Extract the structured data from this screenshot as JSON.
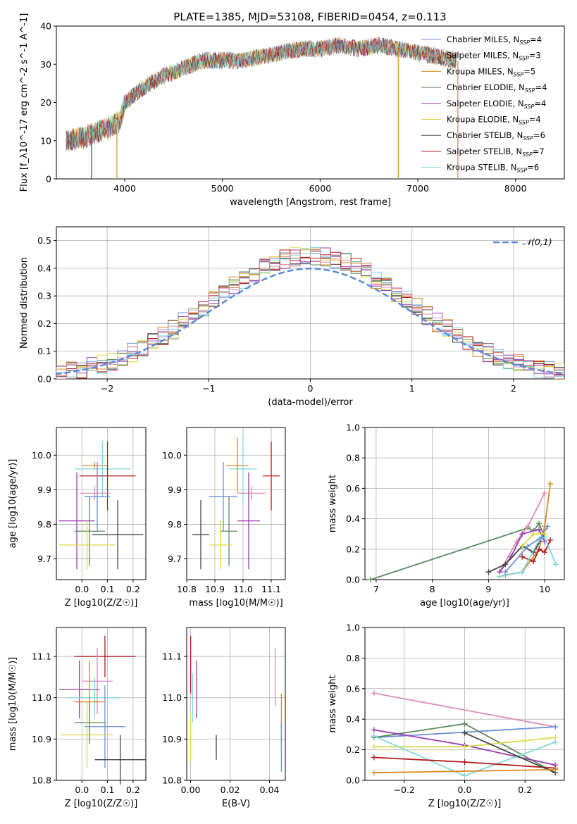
{
  "figure": {
    "title": "PLATE=1385, MJD=53108, FIBERID=0454, z=0.113"
  },
  "colors": {
    "Chabrier MILES": "#6a8fd8",
    "Salpeter MILES": "#e07b5a",
    "Kroupa MILES": "#d98a20",
    "Chabrier ELODIE": "#5a8a5a",
    "Salpeter ELODIE": "#9a3ab0",
    "Kroupa ELODIE": "#d8d84a",
    "Chabrier STELIB": "#444444",
    "Salpeter STELIB": "#b01a1a",
    "Kroupa STELIB": "#80d8d8",
    "Kroupa-pink": "#e08ab8"
  },
  "chart_data": [
    {
      "id": "spectrum",
      "type": "line",
      "xlabel": "wavelength [Angstrom, rest frame]",
      "ylabel": "Flux [f_λ10^-17 erg cm^-2 s^-1 A^-1]",
      "xlim": [
        3300,
        8500
      ],
      "ylim": [
        0,
        40
      ],
      "xticks": [
        "4000",
        "5000",
        "6000",
        "7000",
        "8000"
      ],
      "yticks": [
        "0",
        "10",
        "20",
        "30",
        "40"
      ],
      "legend_position": "upper-right",
      "series": [
        {
          "name": "Chabrier MILES, N_SSP=4"
        },
        {
          "name": "Salpeter MILES, N_SSP=3"
        },
        {
          "name": "Kroupa MILES, N_SSP=5"
        },
        {
          "name": "Chabrier ELODIE, N_SSP=4"
        },
        {
          "name": "Salpeter ELODIE, N_SSP=4"
        },
        {
          "name": "Kroupa ELODIE, N_SSP=4"
        },
        {
          "name": "Chabrier STELIB, N_SSP=6"
        },
        {
          "name": "Salpeter STELIB, N_SSP=7"
        },
        {
          "name": "Kroupa STELIB, N_SSP=6"
        }
      ],
      "continuum": {
        "x": [
          3400,
          3600,
          3800,
          3950,
          4000,
          4200,
          4400,
          4600,
          4800,
          5000,
          5200,
          5400,
          5600,
          5800,
          6000,
          6200,
          6400,
          6600,
          6800,
          7000,
          7200,
          7400
        ],
        "y": [
          10,
          11,
          13,
          15,
          20,
          24,
          27,
          29,
          31,
          31,
          31,
          32,
          33,
          34,
          34,
          35,
          34,
          35,
          34,
          33,
          32,
          31
        ]
      },
      "drops": [
        {
          "x": 3660,
          "series": "Salpeter STELIB"
        },
        {
          "x": 3920,
          "series": "Kroupa MILES"
        },
        {
          "x": 6800,
          "series": "Kroupa MILES"
        },
        {
          "x": 7410,
          "series": "Salpeter MILES"
        }
      ]
    },
    {
      "id": "residuals",
      "type": "step",
      "xlabel": "(data-model)/error",
      "ylabel": "Normed distribution",
      "xlim": [
        -2.5,
        2.5
      ],
      "ylim": [
        0,
        0.55
      ],
      "xticks": [
        "−2",
        "−1",
        "0",
        "1",
        "2"
      ],
      "yticks": [
        "0.0",
        "0.1",
        "0.2",
        "0.3",
        "0.4",
        "0.5"
      ],
      "reference": {
        "name": "𝒩(0,1)",
        "mu": 0,
        "sigma": 1
      },
      "bin_width": 0.1
    },
    {
      "id": "age-vs-Z",
      "type": "scatter",
      "xlabel": "Z [log10(Z/Z☉)]",
      "ylabel": "age  [log10(age/yr)]",
      "xlim": [
        -0.1,
        0.25
      ],
      "ylim": [
        9.64,
        10.08
      ],
      "xticks": [
        "0.0",
        "0.1",
        "0.2"
      ],
      "yticks": [
        "9.7",
        "9.8",
        "9.9",
        "10.0"
      ],
      "points": [
        {
          "x": 0.05,
          "xerr": 0.05,
          "y": 9.97,
          "yerr": 0.01,
          "c": "Kroupa MILES"
        },
        {
          "x": 0.08,
          "xerr": 0.11,
          "y": 9.96,
          "yerr": 0.08,
          "c": "Kroupa STELIB"
        },
        {
          "x": 0.1,
          "xerr": 0.11,
          "y": 9.94,
          "yerr": 0.1,
          "c": "Salpeter STELIB"
        },
        {
          "x": 0.05,
          "xerr": 0.06,
          "y": 9.89,
          "yerr": 0.02,
          "c": "Kroupa-pink"
        },
        {
          "x": 0.06,
          "xerr": 0.05,
          "y": 9.88,
          "yerr": 0.1,
          "c": "Chabrier MILES"
        },
        {
          "x": -0.02,
          "xerr": 0.07,
          "y": 9.81,
          "yerr": 0.14,
          "c": "Salpeter ELODIE"
        },
        {
          "x": 0.03,
          "xerr": 0.06,
          "y": 9.78,
          "yerr": 0.1,
          "c": "Chabrier ELODIE"
        },
        {
          "x": 0.14,
          "xerr": 0.1,
          "y": 9.77,
          "yerr": 0.1,
          "c": "Chabrier STELIB"
        },
        {
          "x": 0.02,
          "xerr": 0.11,
          "y": 9.74,
          "yerr": 0.07,
          "c": "Kroupa ELODIE"
        }
      ]
    },
    {
      "id": "age-vs-mass",
      "type": "scatter",
      "xlabel": "mass [log10(M/M☉)]",
      "ylabel": "",
      "xlim": [
        10.8,
        11.15
      ],
      "ylim": [
        9.64,
        10.08
      ],
      "xticks": [
        "10.8",
        "10.9",
        "11.0",
        "11.1"
      ],
      "yticks": [
        "9.7",
        "9.8",
        "9.9",
        "10.0"
      ],
      "points": [
        {
          "x": 10.98,
          "xerr": 0.04,
          "y": 9.97,
          "yerr": 0.08,
          "c": "Kroupa MILES"
        },
        {
          "x": 11.0,
          "xerr": 0.05,
          "y": 9.96,
          "yerr": 0.1,
          "c": "Kroupa STELIB"
        },
        {
          "x": 11.1,
          "xerr": 0.03,
          "y": 9.94,
          "yerr": 0.1,
          "c": "Salpeter STELIB"
        },
        {
          "x": 11.03,
          "xerr": 0.05,
          "y": 9.89,
          "yerr": 0.02,
          "c": "Kroupa-pink"
        },
        {
          "x": 10.93,
          "xerr": 0.05,
          "y": 9.88,
          "yerr": 0.1,
          "c": "Chabrier MILES"
        },
        {
          "x": 11.02,
          "xerr": 0.04,
          "y": 9.81,
          "yerr": 0.14,
          "c": "Salpeter ELODIE"
        },
        {
          "x": 10.95,
          "xerr": 0.03,
          "y": 9.78,
          "yerr": 0.1,
          "c": "Chabrier ELODIE"
        },
        {
          "x": 10.85,
          "xerr": 0.03,
          "y": 9.77,
          "yerr": 0.1,
          "c": "Chabrier STELIB"
        },
        {
          "x": 10.92,
          "xerr": 0.04,
          "y": 9.74,
          "yerr": 0.07,
          "c": "Kroupa ELODIE"
        }
      ]
    },
    {
      "id": "weight-vs-age",
      "type": "line",
      "xlabel": "age  [log10(age/yr)]",
      "ylabel": "mass weight",
      "xlim": [
        6.8,
        10.35
      ],
      "ylim": [
        0,
        1
      ],
      "xticks": [
        "7",
        "8",
        "9",
        "10"
      ],
      "yticks": [
        "0.0",
        "0.2",
        "0.4",
        "0.6",
        "0.8",
        "1.0"
      ],
      "series": [
        {
          "c": "Chabrier ELODIE",
          "x": [
            6.9,
            9.7,
            9.8,
            9.9,
            10.0
          ],
          "y": [
            0.0,
            0.34,
            0.32,
            0.37,
            0.28
          ]
        },
        {
          "c": "Kroupa MILES",
          "x": [
            9.3,
            9.6,
            9.9,
            10.0,
            10.1
          ],
          "y": [
            0.03,
            0.05,
            0.2,
            0.35,
            0.63
          ]
        },
        {
          "c": "Kroupa-pink",
          "x": [
            9.2,
            9.5,
            9.7,
            10.0
          ],
          "y": [
            0.05,
            0.25,
            0.35,
            0.57
          ]
        },
        {
          "c": "Salpeter ELODIE",
          "x": [
            9.2,
            9.4,
            9.6,
            9.9,
            10.0
          ],
          "y": [
            0.05,
            0.15,
            0.3,
            0.33,
            0.25
          ]
        },
        {
          "c": "Chabrier STELIB",
          "x": [
            9.0,
            9.3,
            9.6,
            9.8,
            10.0
          ],
          "y": [
            0.05,
            0.1,
            0.22,
            0.18,
            0.3
          ]
        },
        {
          "c": "Salpeter STELIB",
          "x": [
            9.6,
            9.8,
            9.9,
            10.0,
            10.1
          ],
          "y": [
            0.15,
            0.12,
            0.2,
            0.18,
            0.26
          ]
        },
        {
          "c": "Kroupa STELIB",
          "x": [
            9.2,
            9.6,
            9.9,
            10.0,
            10.2
          ],
          "y": [
            0.02,
            0.05,
            0.26,
            0.28,
            0.1
          ]
        },
        {
          "c": "Chabrier MILES",
          "x": [
            9.3,
            9.7,
            9.95,
            10.05
          ],
          "y": [
            0.05,
            0.22,
            0.28,
            0.35
          ]
        },
        {
          "c": "Kroupa ELODIE",
          "x": [
            9.6,
            9.8,
            10.0
          ],
          "y": [
            0.22,
            0.3,
            0.3
          ]
        }
      ]
    },
    {
      "id": "mass-vs-Z",
      "type": "scatter",
      "xlabel": "Z [log10(Z/Z☉)]",
      "ylabel": "mass [log10(M/M☉)]",
      "xlim": [
        -0.1,
        0.25
      ],
      "ylim": [
        10.8,
        11.17
      ],
      "xticks": [
        "0.0",
        "0.1",
        "0.2"
      ],
      "yticks": [
        "10.8",
        "10.9",
        "11.0",
        "11.1"
      ],
      "points": [
        {
          "x": 0.09,
          "xerr": 0.12,
          "y": 11.1,
          "yerr": 0.05,
          "c": "Salpeter STELIB"
        },
        {
          "x": 0.06,
          "xerr": 0.06,
          "y": 11.04,
          "yerr": 0.08,
          "c": "Kroupa-pink"
        },
        {
          "x": -0.01,
          "xerr": 0.08,
          "y": 11.02,
          "yerr": 0.07,
          "c": "Salpeter ELODIE"
        },
        {
          "x": 0.05,
          "xerr": 0.1,
          "y": 11.0,
          "yerr": 0.05,
          "c": "Kroupa STELIB"
        },
        {
          "x": 0.03,
          "xerr": 0.06,
          "y": 10.99,
          "yerr": 0.1,
          "c": "Kroupa MILES"
        },
        {
          "x": 0.03,
          "xerr": 0.06,
          "y": 10.94,
          "yerr": 0.05,
          "c": "Chabrier ELODIE"
        },
        {
          "x": 0.09,
          "xerr": 0.08,
          "y": 10.93,
          "yerr": 0.1,
          "c": "Chabrier MILES"
        },
        {
          "x": 0.02,
          "xerr": 0.1,
          "y": 10.91,
          "yerr": 0.08,
          "c": "Kroupa ELODIE"
        },
        {
          "x": 0.15,
          "xerr": 0.1,
          "y": 10.85,
          "yerr": 0.06,
          "c": "Chabrier STELIB"
        }
      ]
    },
    {
      "id": "mass-vs-EBV",
      "type": "scatter",
      "xlabel": "E(B-V)",
      "ylabel": "",
      "xlim": [
        -0.002,
        0.048
      ],
      "ylim": [
        10.8,
        11.17
      ],
      "xticks": [
        "0.00",
        "0.02",
        "0.04"
      ],
      "yticks": [
        "10.8",
        "10.9",
        "11.0",
        "11.1"
      ],
      "points": [
        {
          "x": 0.0,
          "y": 11.08,
          "yerr": 0.07,
          "c": "Salpeter STELIB"
        },
        {
          "x": 0.003,
          "y": 11.02,
          "yerr": 0.07,
          "c": "Salpeter ELODIE"
        },
        {
          "x": 0.001,
          "y": 11.0,
          "yerr": 0.06,
          "c": "Kroupa STELIB"
        },
        {
          "x": 0.0,
          "y": 10.9,
          "yerr": 0.06,
          "c": "Kroupa ELODIE"
        },
        {
          "x": 0.013,
          "y": 10.88,
          "yerr": 0.03,
          "c": "Chabrier STELIB"
        },
        {
          "x": 0.043,
          "y": 11.05,
          "yerr": 0.07,
          "c": "Kroupa-pink"
        },
        {
          "x": 0.046,
          "y": 10.94,
          "yerr": 0.07,
          "c": "Kroupa MILES"
        },
        {
          "x": 0.046,
          "y": 10.88,
          "yerr": 0.06,
          "c": "Chabrier MILES"
        }
      ]
    },
    {
      "id": "weight-vs-Z",
      "type": "line",
      "xlabel": "Z [log10(Z/Z☉)]",
      "ylabel": "mass weight",
      "xlim": [
        -0.33,
        0.33
      ],
      "ylim": [
        0,
        1
      ],
      "xticks": [
        "−0.2",
        "0.0",
        "0.2"
      ],
      "yticks": [
        "0.0",
        "0.2",
        "0.4",
        "0.6",
        "0.8",
        "1.0"
      ],
      "series": [
        {
          "c": "Kroupa-pink",
          "x": [
            -0.3,
            0.3
          ],
          "y": [
            0.57,
            0.35
          ]
        },
        {
          "c": "Chabrier MILES",
          "x": [
            -0.3,
            0.3
          ],
          "y": [
            0.28,
            0.35
          ]
        },
        {
          "c": "Chabrier ELODIE",
          "x": [
            -0.3,
            0.0,
            0.3
          ],
          "y": [
            0.28,
            0.37,
            0.05
          ]
        },
        {
          "c": "Salpeter ELODIE",
          "x": [
            -0.3,
            0.0,
            0.3
          ],
          "y": [
            0.33,
            0.23,
            0.1
          ]
        },
        {
          "c": "Kroupa ELODIE",
          "x": [
            -0.3,
            0.0,
            0.3
          ],
          "y": [
            0.22,
            0.22,
            0.28
          ]
        },
        {
          "c": "Kroupa STELIB",
          "x": [
            -0.3,
            0.0,
            0.3
          ],
          "y": [
            0.29,
            0.03,
            0.25
          ]
        },
        {
          "c": "Salpeter STELIB",
          "x": [
            -0.3,
            0.0,
            0.3
          ],
          "y": [
            0.15,
            0.12,
            0.08
          ]
        },
        {
          "c": "Chabrier STELIB",
          "x": [
            0.0,
            0.3
          ],
          "y": [
            0.31,
            0.05
          ]
        },
        {
          "c": "Kroupa MILES",
          "x": [
            -0.3,
            0.3
          ],
          "y": [
            0.05,
            0.07
          ]
        }
      ]
    }
  ]
}
